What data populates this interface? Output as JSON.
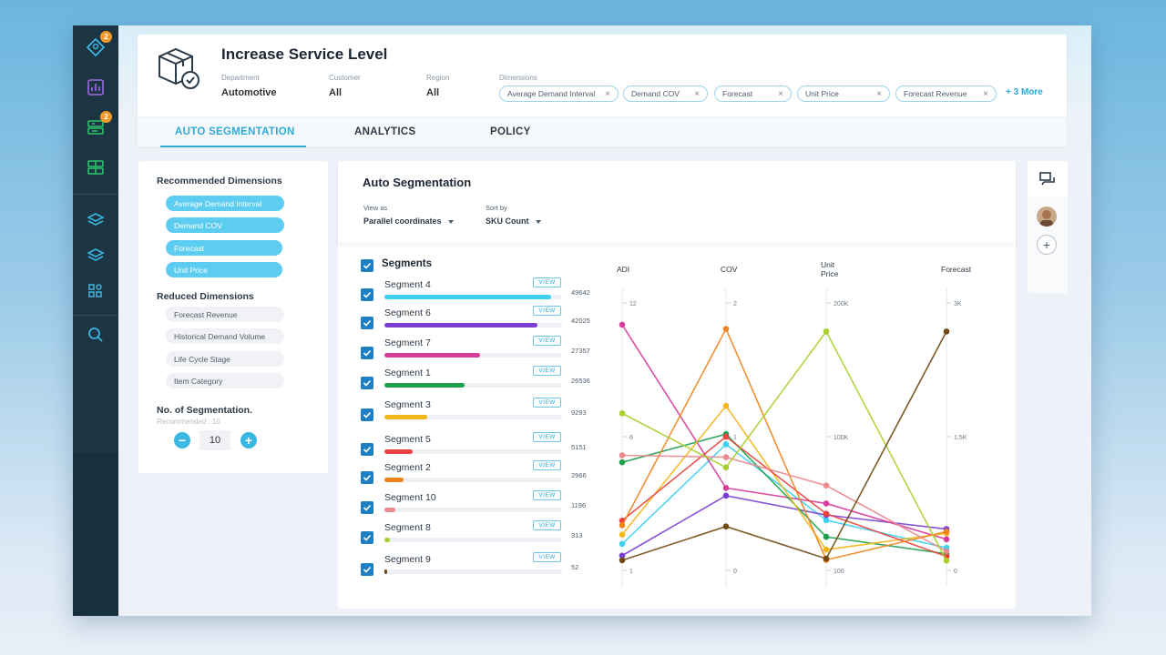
{
  "sidebar": {
    "badges": [
      "2",
      "2"
    ]
  },
  "header": {
    "title": "Increase Service Level",
    "meta": [
      {
        "label": "Department",
        "value": "Automotive"
      },
      {
        "label": "Customer",
        "value": "All"
      },
      {
        "label": "Region",
        "value": "All"
      }
    ],
    "dimensions_label": "Dimensions",
    "chips": [
      "Average Demand Interval",
      "Demand COV",
      "Forecast",
      "Unit Price",
      "Forecast Revenue"
    ],
    "more": "+ 3 More"
  },
  "tabs": [
    "AUTO SEGMENTATION",
    "ANALYTICS",
    "POLICY"
  ],
  "left_panel": {
    "recommended_title": "Recommended Dimensions",
    "recommended": [
      "Average Demand Interval",
      "Demand COV",
      "Forecast",
      "Unit Price"
    ],
    "reduced_title": "Reduced Dimensions",
    "reduced": [
      "Forecast Revenue",
      "Historical Demand Volume",
      "Life Cycle Stage",
      "Item Category"
    ],
    "segmentation_title": "No. of Segmentation.",
    "segmentation_recommended": "Recommended : 10",
    "segmentation_value": "10"
  },
  "main": {
    "title": "Auto Segmentation",
    "view_as_label": "View as",
    "view_as_value": "Parallel coordinates",
    "sort_by_label": "Sort by",
    "sort_by_value": "SKU Count",
    "segments_header": "Segments",
    "view_label": "VIEW",
    "segments": [
      {
        "name": "Segment 4",
        "count": "49642",
        "fraction": 0.94,
        "color": "#3dd0ef"
      },
      {
        "name": "Segment 6",
        "count": "42025",
        "fraction": 0.86,
        "color": "#7b3fcf"
      },
      {
        "name": "Segment 7",
        "count": "27357",
        "fraction": 0.54,
        "color": "#d63c9a"
      },
      {
        "name": "Segment 1",
        "count": "26536",
        "fraction": 0.45,
        "color": "#1e9f4e"
      },
      {
        "name": "Segment 3",
        "count": "9293",
        "fraction": 0.24,
        "color": "#f2b619"
      },
      {
        "name": "Segment 5",
        "count": "5151",
        "fraction": 0.16,
        "color": "#e8423f"
      },
      {
        "name": "Segment 2",
        "count": "2966",
        "fraction": 0.11,
        "color": "#f0841c"
      },
      {
        "name": "Segment 10",
        "count": "1196",
        "fraction": 0.06,
        "color": "#e98a8e"
      },
      {
        "name": "Segment 8",
        "count": "313",
        "fraction": 0.03,
        "color": "#a8cf2f"
      },
      {
        "name": "Segment 9",
        "count": "52",
        "fraction": 0.015,
        "color": "#6e4a12"
      }
    ]
  },
  "chart_data": {
    "type": "parallel-coordinates",
    "axes": [
      {
        "name": "ADI",
        "ticks": [
          "12",
          "6",
          "1"
        ],
        "range": [
          1,
          12
        ]
      },
      {
        "name": "COV",
        "ticks": [
          "2",
          "1",
          "0"
        ],
        "range": [
          0,
          2
        ]
      },
      {
        "name": "Unit Price",
        "ticks": [
          "200K",
          "100K",
          "100"
        ],
        "range": [
          100,
          200000
        ]
      },
      {
        "name": "Forecast",
        "ticks": [
          "3K",
          "1.5K",
          "0"
        ],
        "range": [
          0,
          3000
        ]
      }
    ],
    "series": [
      {
        "name": "Segment 4",
        "color": "#3dd0ef",
        "values": [
          1.9,
          0.94,
          35000,
          200
        ]
      },
      {
        "name": "Segment 6",
        "color": "#7b3fcf",
        "values": [
          1.4,
          0.54,
          39000,
          420
        ]
      },
      {
        "name": "Segment 7",
        "color": "#d63c9a",
        "values": [
          11.3,
          0.6,
          48000,
          300
        ]
      },
      {
        "name": "Segment 1",
        "color": "#1e9f4e",
        "values": [
          5.4,
          1.02,
          22000,
          130
        ]
      },
      {
        "name": "Segment 3",
        "color": "#f2b619",
        "values": [
          2.3,
          1.24,
          12000,
          370
        ]
      },
      {
        "name": "Segment 5",
        "color": "#e8423f",
        "values": [
          2.9,
          1.0,
          40000,
          100
        ]
      },
      {
        "name": "Segment 2",
        "color": "#f0841c",
        "values": [
          2.7,
          1.84,
          4000,
          390
        ]
      },
      {
        "name": "Segment 10",
        "color": "#e98a8e",
        "values": [
          5.7,
          0.84,
          62000,
          160
        ]
      },
      {
        "name": "Segment 8",
        "color": "#a8cf2f",
        "values": [
          7.5,
          0.76,
          182000,
          50
        ]
      },
      {
        "name": "Segment 9",
        "color": "#6e4a12",
        "values": [
          1.2,
          0.3,
          5000,
          2730
        ]
      }
    ]
  }
}
